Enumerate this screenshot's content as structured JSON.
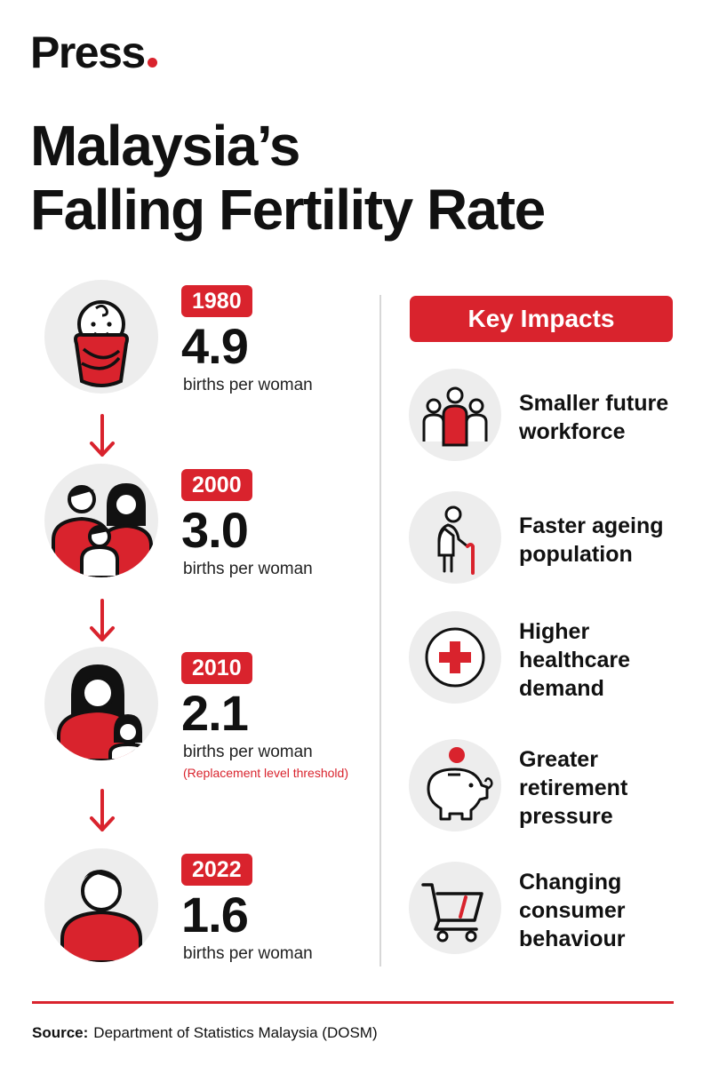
{
  "brand": {
    "name": "Press"
  },
  "title": {
    "line1": "Malaysia’s",
    "line2": "Falling Fertility Rate"
  },
  "timeline": [
    {
      "year": "1980",
      "rate": "4.9",
      "unit": "births per woman",
      "note": "",
      "icon": "baby-icon"
    },
    {
      "year": "2000",
      "rate": "3.0",
      "unit": "births per woman",
      "note": "",
      "icon": "family-icon"
    },
    {
      "year": "2010",
      "rate": "2.1",
      "unit": "births per woman",
      "note": "(Replacement level threshold)",
      "icon": "mother-child-icon"
    },
    {
      "year": "2022",
      "rate": "1.6",
      "unit": "births per woman",
      "note": "",
      "icon": "single-person-icon"
    }
  ],
  "impacts": {
    "header": "Key Impacts",
    "items": [
      {
        "line1": "Smaller future",
        "line2": "workforce",
        "line3": "",
        "icon": "workforce-icon"
      },
      {
        "line1": "Faster ageing",
        "line2": "population",
        "line3": "",
        "icon": "elderly-icon"
      },
      {
        "line1": "Higher",
        "line2": "healthcare",
        "line3": "demand",
        "icon": "medical-cross-icon"
      },
      {
        "line1": "Greater",
        "line2": "retirement",
        "line3": "pressure",
        "icon": "piggy-bank-icon"
      },
      {
        "line1": "Changing",
        "line2": "consumer",
        "line3": "behaviour",
        "icon": "shopping-cart-icon"
      }
    ]
  },
  "source": {
    "label": "Source:",
    "text": "Department of Statistics Malaysia (DOSM)"
  },
  "colors": {
    "accent": "#d9232d",
    "text": "#111111",
    "circle": "#ededed"
  }
}
